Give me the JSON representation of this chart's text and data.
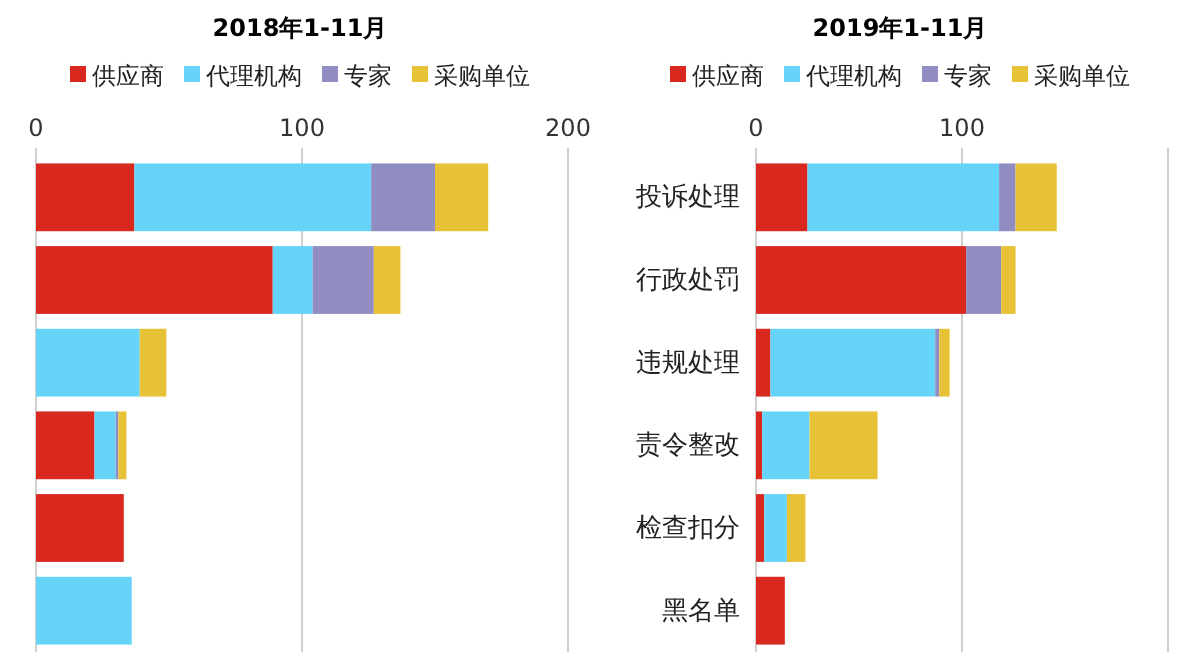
{
  "chart_data": [
    {
      "type": "bar",
      "orientation": "horizontal",
      "stacked": true,
      "title": "2018年1-11月",
      "categories": [
        null,
        null,
        null,
        null,
        null,
        null
      ],
      "series": [
        {
          "name": "供应商",
          "color": "#d9281e",
          "values": [
            37,
            89,
            0,
            22,
            33,
            0
          ]
        },
        {
          "name": "代理机构",
          "color": "#66d4f9",
          "values": [
            89,
            15,
            39,
            8,
            0,
            36
          ]
        },
        {
          "name": "专家",
          "color": "#8f8dc1",
          "values": [
            24,
            23,
            0,
            1,
            0,
            0
          ]
        },
        {
          "name": "采购单位",
          "color": "#e8c236",
          "values": [
            20,
            10,
            10,
            3,
            0,
            0
          ]
        }
      ],
      "xlim": [
        0,
        200
      ],
      "xticks": [
        0,
        100,
        200
      ],
      "grid": "x",
      "legend": "top"
    },
    {
      "type": "bar",
      "orientation": "horizontal",
      "stacked": true,
      "title": "2019年1-11月",
      "categories": [
        "投诉处理",
        "行政处罚",
        "违规处理",
        "责令整改",
        "检查扣分",
        "黑名单"
      ],
      "series": [
        {
          "name": "供应商",
          "color": "#d9281e",
          "values": [
            25,
            102,
            7,
            3,
            4,
            14
          ]
        },
        {
          "name": "代理机构",
          "color": "#66d4f9",
          "values": [
            93,
            0,
            80,
            23,
            11,
            0
          ]
        },
        {
          "name": "专家",
          "color": "#8f8dc1",
          "values": [
            8,
            17,
            2,
            0,
            0,
            0
          ]
        },
        {
          "name": "采购单位",
          "color": "#e8c236",
          "values": [
            20,
            7,
            5,
            33,
            9,
            0
          ]
        }
      ],
      "xlim": [
        0,
        200
      ],
      "xticks": [
        0,
        100,
        {
          "value": 200,
          "label": null
        }
      ],
      "grid": "x",
      "legend": "top"
    }
  ]
}
